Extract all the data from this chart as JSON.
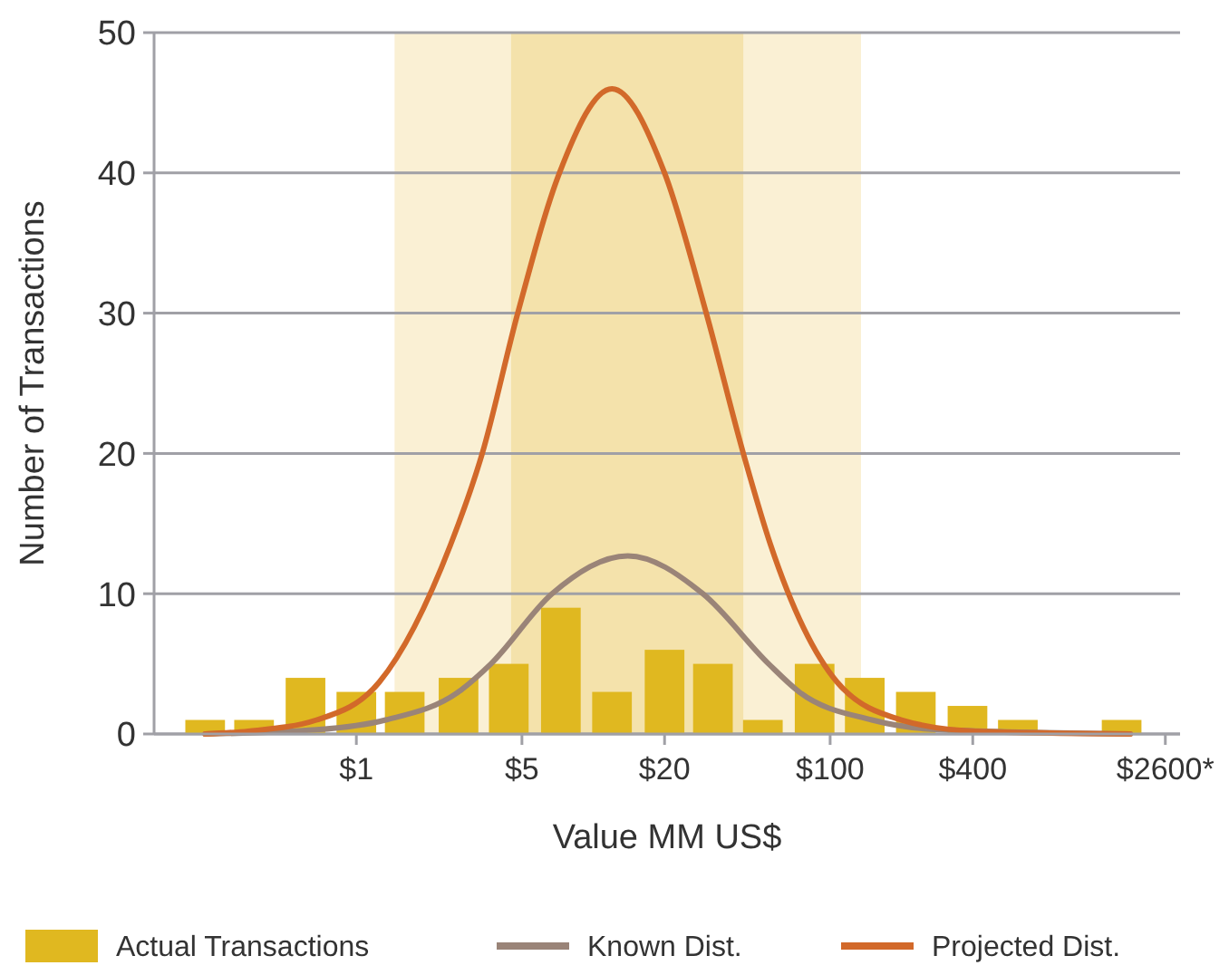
{
  "chart_data": {
    "type": "bar",
    "xlabel": "Value MM US$",
    "ylabel": "Number of Transactions",
    "log": "x",
    "xlim": [
      0.14,
      3000
    ],
    "xticks": [
      {
        "value": 1,
        "label": "$1"
      },
      {
        "value": 5,
        "label": "$5"
      },
      {
        "value": 20,
        "label": "$20"
      },
      {
        "value": 100,
        "label": "$100"
      },
      {
        "value": 400,
        "label": "$400"
      },
      {
        "value": 2600,
        "label": "$2600*"
      }
    ],
    "ylim": [
      0,
      50
    ],
    "yticks": [
      0,
      10,
      20,
      30,
      40,
      50
    ],
    "grid": "y",
    "legend": "bottom",
    "bands": [
      {
        "axis": "x",
        "from": 1.45,
        "to": 135,
        "color": "#faf0d4"
      },
      {
        "axis": "x",
        "from": 4.5,
        "to": 43,
        "color": "#f4e2ab"
      }
    ],
    "series": [
      {
        "name": "Actual Transactions",
        "color": "#e0b820",
        "x": [
          0.23,
          0.37,
          0.61,
          1,
          1.6,
          2.7,
          4.4,
          7.3,
          12,
          20,
          32,
          52,
          86,
          140,
          230,
          380,
          620,
          1000,
          1700
        ],
        "values": [
          1,
          1,
          4,
          3,
          3,
          4,
          5,
          9,
          3,
          6,
          5,
          1,
          5,
          4,
          3,
          2,
          1,
          0,
          1
        ]
      },
      {
        "name": "Known Dist.",
        "type": "line",
        "color": "#9a8478",
        "x": [
          0.23,
          0.68,
          1.33,
          2.7,
          3.7,
          6.7,
          14,
          29,
          55,
          74,
          150,
          290,
          1850
        ],
        "values": [
          0,
          0.3,
          1,
          3,
          5,
          10,
          12.7,
          10,
          5,
          3,
          1,
          0.3,
          0
        ]
      },
      {
        "name": "Projected Dist.",
        "type": "line",
        "color": "#d2692a",
        "x": [
          0.23,
          0.35,
          0.68,
          1.25,
          2.5,
          3.4,
          4.8,
          7.2,
          12,
          20,
          30,
          43,
          56,
          107,
          200,
          410,
          1850
        ],
        "values": [
          0,
          0.2,
          1,
          3.7,
          13.5,
          20,
          30,
          40,
          46,
          40,
          30,
          20,
          13.5,
          3.7,
          1,
          0.2,
          0
        ]
      }
    ]
  }
}
